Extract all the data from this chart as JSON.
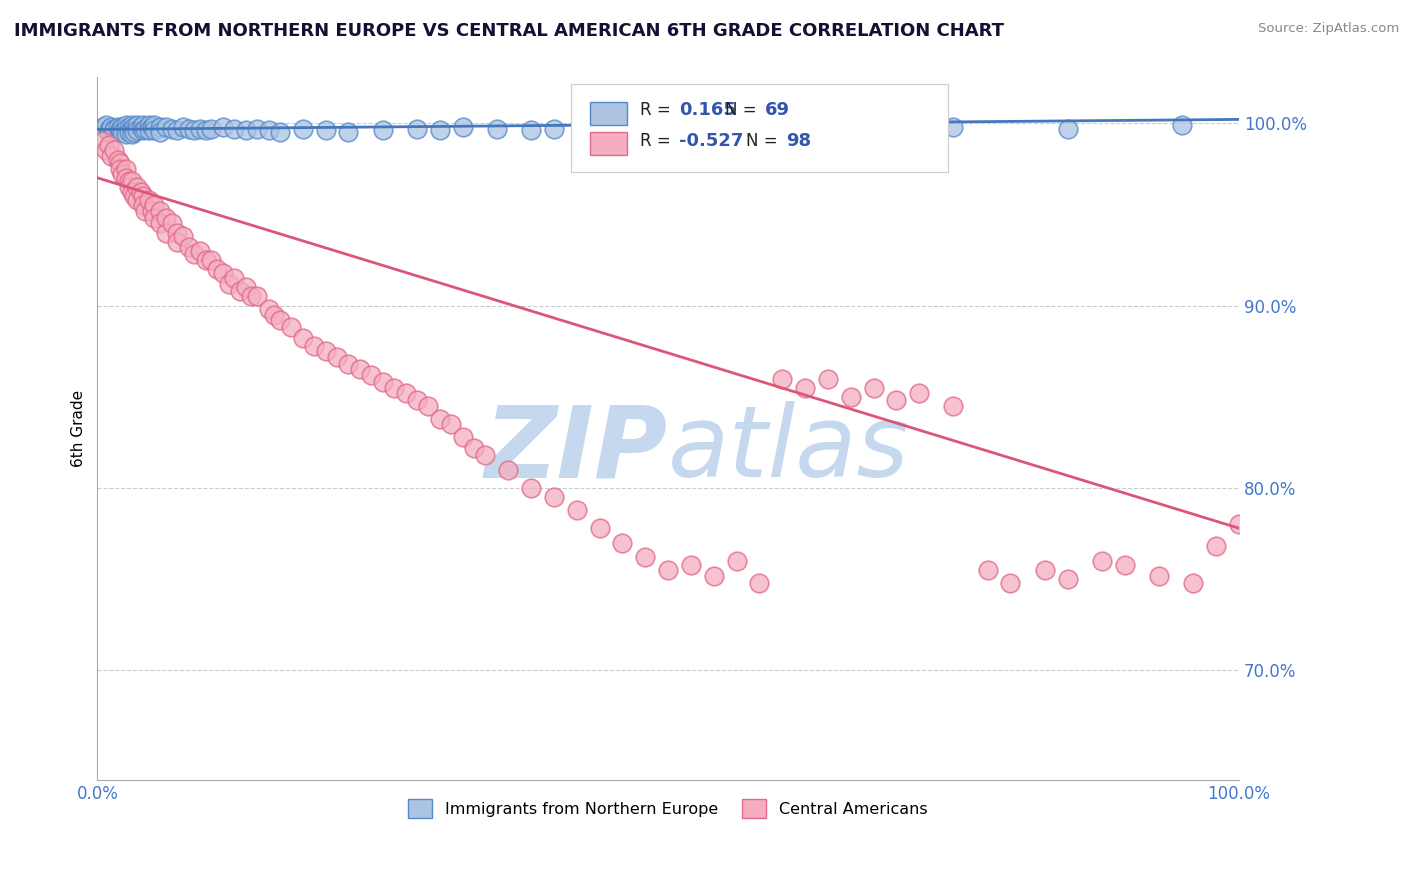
{
  "title": "IMMIGRANTS FROM NORTHERN EUROPE VS CENTRAL AMERICAN 6TH GRADE CORRELATION CHART",
  "source": "Source: ZipAtlas.com",
  "ylabel": "6th Grade",
  "xlim": [
    0.0,
    1.0
  ],
  "ylim": [
    0.64,
    1.025
  ],
  "ytick_labels": [
    "70.0%",
    "80.0%",
    "90.0%",
    "100.0%"
  ],
  "ytick_values": [
    0.7,
    0.8,
    0.9,
    1.0
  ],
  "xtick_labels": [
    "0.0%",
    "100.0%"
  ],
  "xtick_values": [
    0.0,
    1.0
  ],
  "blue_R": 0.165,
  "blue_N": 69,
  "pink_R": -0.527,
  "pink_N": 98,
  "blue_color": "#aac4e2",
  "pink_color": "#f5aec0",
  "blue_edge_color": "#5588cc",
  "pink_edge_color": "#e06888",
  "blue_line_color": "#4477bb",
  "pink_line_color": "#dd5577",
  "grid_color": "#cccccc",
  "watermark_color": "#c5d8ee",
  "legend_r_color": "#3355aa",
  "legend_n_color": "#3355aa",
  "blue_scatter_x": [
    0.005,
    0.008,
    0.01,
    0.01,
    0.012,
    0.015,
    0.015,
    0.018,
    0.02,
    0.02,
    0.022,
    0.022,
    0.025,
    0.025,
    0.025,
    0.028,
    0.028,
    0.03,
    0.03,
    0.03,
    0.032,
    0.032,
    0.035,
    0.035,
    0.038,
    0.04,
    0.04,
    0.042,
    0.045,
    0.045,
    0.048,
    0.05,
    0.05,
    0.055,
    0.055,
    0.06,
    0.065,
    0.07,
    0.075,
    0.08,
    0.085,
    0.09,
    0.095,
    0.1,
    0.11,
    0.12,
    0.13,
    0.14,
    0.15,
    0.16,
    0.18,
    0.2,
    0.22,
    0.25,
    0.28,
    0.3,
    0.32,
    0.35,
    0.38,
    0.4,
    0.45,
    0.5,
    0.55,
    0.6,
    0.65,
    0.7,
    0.75,
    0.85,
    0.95
  ],
  "blue_scatter_y": [
    0.998,
    0.999,
    0.997,
    0.995,
    0.998,
    0.997,
    0.996,
    0.998,
    0.997,
    0.996,
    0.998,
    0.995,
    0.999,
    0.997,
    0.994,
    0.998,
    0.995,
    0.999,
    0.997,
    0.994,
    0.998,
    0.995,
    0.999,
    0.996,
    0.998,
    0.999,
    0.996,
    0.997,
    0.999,
    0.996,
    0.998,
    0.999,
    0.996,
    0.998,
    0.995,
    0.998,
    0.997,
    0.996,
    0.998,
    0.997,
    0.996,
    0.997,
    0.996,
    0.997,
    0.998,
    0.997,
    0.996,
    0.997,
    0.996,
    0.995,
    0.997,
    0.996,
    0.995,
    0.996,
    0.997,
    0.996,
    0.998,
    0.997,
    0.996,
    0.997,
    0.998,
    0.997,
    0.996,
    0.998,
    0.997,
    0.997,
    0.998,
    0.997,
    0.999
  ],
  "pink_scatter_x": [
    0.005,
    0.008,
    0.01,
    0.012,
    0.015,
    0.018,
    0.02,
    0.02,
    0.022,
    0.025,
    0.025,
    0.028,
    0.028,
    0.03,
    0.03,
    0.032,
    0.035,
    0.035,
    0.038,
    0.04,
    0.04,
    0.042,
    0.045,
    0.048,
    0.05,
    0.05,
    0.055,
    0.055,
    0.06,
    0.06,
    0.065,
    0.07,
    0.07,
    0.075,
    0.08,
    0.085,
    0.09,
    0.095,
    0.1,
    0.105,
    0.11,
    0.115,
    0.12,
    0.125,
    0.13,
    0.135,
    0.14,
    0.15,
    0.155,
    0.16,
    0.17,
    0.18,
    0.19,
    0.2,
    0.21,
    0.22,
    0.23,
    0.24,
    0.25,
    0.26,
    0.27,
    0.28,
    0.29,
    0.3,
    0.31,
    0.32,
    0.33,
    0.34,
    0.36,
    0.38,
    0.4,
    0.42,
    0.44,
    0.46,
    0.48,
    0.5,
    0.52,
    0.54,
    0.56,
    0.58,
    0.6,
    0.62,
    0.64,
    0.66,
    0.68,
    0.7,
    0.72,
    0.75,
    0.78,
    0.8,
    0.83,
    0.85,
    0.88,
    0.9,
    0.93,
    0.96,
    0.98,
    1.0
  ],
  "pink_scatter_y": [
    0.99,
    0.985,
    0.988,
    0.982,
    0.985,
    0.98,
    0.978,
    0.975,
    0.972,
    0.975,
    0.97,
    0.968,
    0.965,
    0.968,
    0.962,
    0.96,
    0.965,
    0.958,
    0.962,
    0.96,
    0.955,
    0.952,
    0.958,
    0.952,
    0.955,
    0.948,
    0.952,
    0.945,
    0.948,
    0.94,
    0.945,
    0.94,
    0.935,
    0.938,
    0.932,
    0.928,
    0.93,
    0.925,
    0.925,
    0.92,
    0.918,
    0.912,
    0.915,
    0.908,
    0.91,
    0.905,
    0.905,
    0.898,
    0.895,
    0.892,
    0.888,
    0.882,
    0.878,
    0.875,
    0.872,
    0.868,
    0.865,
    0.862,
    0.858,
    0.855,
    0.852,
    0.848,
    0.845,
    0.838,
    0.835,
    0.828,
    0.822,
    0.818,
    0.81,
    0.8,
    0.795,
    0.788,
    0.778,
    0.77,
    0.762,
    0.755,
    0.758,
    0.752,
    0.76,
    0.748,
    0.86,
    0.855,
    0.86,
    0.85,
    0.855,
    0.848,
    0.852,
    0.845,
    0.755,
    0.748,
    0.755,
    0.75,
    0.76,
    0.758,
    0.752,
    0.748,
    0.768,
    0.78
  ],
  "blue_line_x0": 0.0,
  "blue_line_y0": 0.9965,
  "blue_line_x1": 1.0,
  "blue_line_y1": 1.002,
  "pink_line_x0": 0.0,
  "pink_line_y0": 0.97,
  "pink_line_x1": 1.0,
  "pink_line_y1": 0.778
}
